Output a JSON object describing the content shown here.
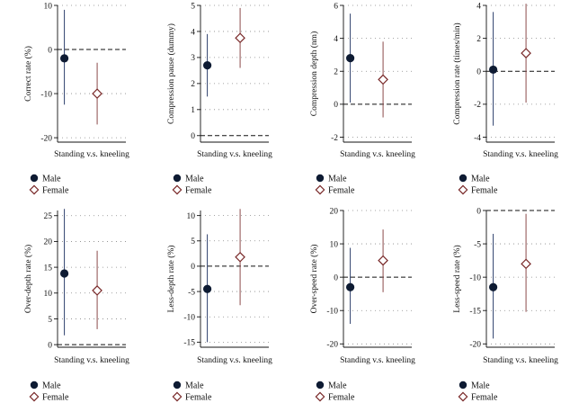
{
  "figure": {
    "colors": {
      "male_ci": "#2c3e6b",
      "female_ci": "#8b4a4a",
      "male_marker": "#0e1b33",
      "female_marker_stroke": "#7a2a2a",
      "female_marker_fill": "#ffffff",
      "grid": "#888888",
      "axis": "#111111"
    },
    "legend": [
      "Male",
      "Female"
    ]
  },
  "chart_data": [
    {
      "type": "scatter",
      "title": "",
      "xlabel": "Standing v.s. kneeling",
      "ylabel": "Correct rate (%)",
      "ylim": [
        -21,
        10
      ],
      "yticks": [
        10,
        0,
        -10,
        -20
      ],
      "reference_line": 0,
      "grid": true,
      "series": [
        {
          "name": "Male",
          "estimate": -2,
          "ci": [
            -12.5,
            9
          ]
        },
        {
          "name": "Female",
          "estimate": -10,
          "ci": [
            -17,
            -3
          ]
        }
      ]
    },
    {
      "type": "scatter",
      "title": "",
      "xlabel": "Standing v.s. kneeling",
      "ylabel": "Compression pause (dummy)",
      "ylim": [
        -0.25,
        5
      ],
      "yticks": [
        5,
        4,
        3,
        2,
        1,
        0
      ],
      "reference_line": 0,
      "grid": true,
      "series": [
        {
          "name": "Male",
          "estimate": 2.7,
          "ci": [
            1.5,
            3.9
          ]
        },
        {
          "name": "Female",
          "estimate": 3.75,
          "ci": [
            2.6,
            4.9
          ]
        }
      ]
    },
    {
      "type": "scatter",
      "title": "",
      "xlabel": "Standing v.s. kneeling",
      "ylabel": "Compression depth (nm)",
      "ylim": [
        -2.3,
        6
      ],
      "yticks": [
        6,
        4,
        2,
        0,
        -2
      ],
      "reference_line": 0,
      "grid": true,
      "series": [
        {
          "name": "Male",
          "estimate": 2.8,
          "ci": [
            0.1,
            5.5
          ]
        },
        {
          "name": "Female",
          "estimate": 1.5,
          "ci": [
            -0.8,
            3.8
          ]
        }
      ]
    },
    {
      "type": "scatter",
      "title": "",
      "xlabel": "Standing v.s. kneeling",
      "ylabel": "Compression rate (times/min)",
      "ylim": [
        -4.3,
        4
      ],
      "yticks": [
        4,
        2,
        0,
        -2,
        -4
      ],
      "reference_line": 0,
      "grid": true,
      "series": [
        {
          "name": "Male",
          "estimate": 0.1,
          "ci": [
            -3.3,
            3.6
          ]
        },
        {
          "name": "Female",
          "estimate": 1.1,
          "ci": [
            -1.9,
            4.1
          ]
        }
      ]
    },
    {
      "type": "scatter",
      "title": "",
      "xlabel": "Standing v.s. kneeling",
      "ylabel": "Over-depth rate (%)",
      "ylim": [
        -0.5,
        26
      ],
      "yticks": [
        25,
        20,
        15,
        10,
        5,
        0
      ],
      "reference_line": 0,
      "grid": true,
      "series": [
        {
          "name": "Male",
          "estimate": 13.8,
          "ci": [
            1.8,
            26.3
          ]
        },
        {
          "name": "Female",
          "estimate": 10.5,
          "ci": [
            3,
            18.2
          ]
        }
      ]
    },
    {
      "type": "scatter",
      "title": "",
      "xlabel": "Standing v.s. kneeling",
      "ylabel": "Less-depth rate (%)",
      "ylim": [
        -16,
        11
      ],
      "yticks": [
        10,
        5,
        0,
        -5,
        -10,
        -15
      ],
      "reference_line": 0,
      "grid": true,
      "series": [
        {
          "name": "Male",
          "estimate": -4.5,
          "ci": [
            -15,
            6.3
          ]
        },
        {
          "name": "Female",
          "estimate": 1.8,
          "ci": [
            -7.7,
            11.3
          ]
        }
      ]
    },
    {
      "type": "scatter",
      "title": "",
      "xlabel": "Standing v.s. kneeling",
      "ylabel": "Over-speed rate (%)",
      "ylim": [
        -21,
        20
      ],
      "yticks": [
        20,
        10,
        0,
        -10,
        -20
      ],
      "reference_line": 0,
      "grid": true,
      "series": [
        {
          "name": "Male",
          "estimate": -3,
          "ci": [
            -14,
            8.8
          ]
        },
        {
          "name": "Female",
          "estimate": 5,
          "ci": [
            -4.5,
            14.3
          ]
        }
      ]
    },
    {
      "type": "scatter",
      "title": "",
      "xlabel": "Standing v.s. kneeling",
      "ylabel": "Less-speed rate (%)",
      "ylim": [
        -20.5,
        0
      ],
      "yticks": [
        0,
        -5,
        -10,
        -15,
        -20
      ],
      "reference_line": 0,
      "grid": true,
      "series": [
        {
          "name": "Male",
          "estimate": -11.5,
          "ci": [
            -19.2,
            -3.5
          ]
        },
        {
          "name": "Female",
          "estimate": -8,
          "ci": [
            -15.2,
            -0.5
          ]
        }
      ]
    }
  ]
}
